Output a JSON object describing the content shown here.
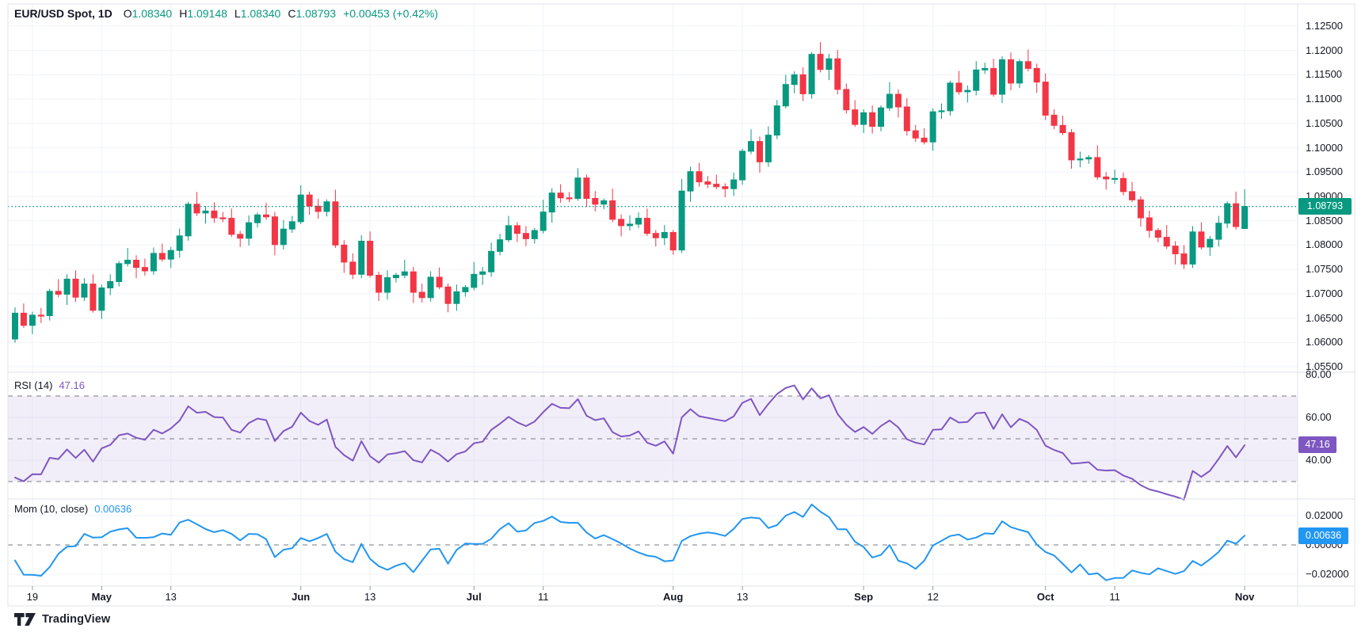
{
  "header": {
    "title": "EUR/USD Spot, 1D",
    "ohlc": [
      {
        "key": "O",
        "value": "1.08340"
      },
      {
        "key": "H",
        "value": "1.09148"
      },
      {
        "key": "L",
        "value": "1.08340"
      },
      {
        "key": "C",
        "value": "1.08793"
      }
    ],
    "change": "+0.00453 (+0.42%)"
  },
  "colors": {
    "up": "#089981",
    "down": "#F23645",
    "rsi_line": "#7E57C2",
    "mom_line": "#2196F3",
    "rsi_band_fill": "rgba(126,87,194,0.10)",
    "dashed_level": "#787B86",
    "grid": "#F0F3FA",
    "separator": "#E0E3EB",
    "text": "#131722",
    "background": "#FFFFFF"
  },
  "price_axis": {
    "badge": "1.08793"
  },
  "rsi_panel": {
    "label": "RSI (14)",
    "value": "47.16",
    "badge": "47.16",
    "ticks": [
      80,
      60,
      40
    ],
    "dashed_levels": [
      70,
      50,
      30
    ],
    "band": [
      70,
      30
    ]
  },
  "mom_panel": {
    "label": "Mom (10, close)",
    "value": "0.00636",
    "badge": "0.00636",
    "ticks": [
      0.02,
      0,
      -0.02
    ],
    "zero_level": 0
  },
  "x_axis": {
    "labels": [
      {
        "text": "19",
        "idx": 2,
        "bold": false
      },
      {
        "text": "May",
        "idx": 10,
        "bold": true
      },
      {
        "text": "13",
        "idx": 18,
        "bold": false
      },
      {
        "text": "Jun",
        "idx": 33,
        "bold": true
      },
      {
        "text": "13",
        "idx": 41,
        "bold": false
      },
      {
        "text": "Jul",
        "idx": 53,
        "bold": true
      },
      {
        "text": "11",
        "idx": 61,
        "bold": false
      },
      {
        "text": "Aug",
        "idx": 76,
        "bold": true
      },
      {
        "text": "13",
        "idx": 84,
        "bold": false
      },
      {
        "text": "Sep",
        "idx": 98,
        "bold": true
      },
      {
        "text": "12",
        "idx": 106,
        "bold": false
      },
      {
        "text": "Oct",
        "idx": 119,
        "bold": true
      },
      {
        "text": "11",
        "idx": 127,
        "bold": false
      },
      {
        "text": "Nov",
        "idx": 142,
        "bold": true
      }
    ]
  },
  "attribution": {
    "text": "TradingView"
  },
  "chart_data": {
    "type": "candlestick",
    "symbol": "EUR/USD Spot",
    "timeframe": "1D",
    "title": "EUR/USD Spot, 1D",
    "last_bar": {
      "open": 1.0834,
      "high": 1.09148,
      "low": 1.0834,
      "close": 1.08793,
      "change": 0.00453,
      "change_pct": 0.42
    },
    "y_axis": {
      "min": 1.055,
      "max": 1.125,
      "step": 0.005
    },
    "rsi_last": 47.16,
    "mom_last": 0.00636,
    "rsi_period": 14,
    "mom_period": 10,
    "first_open": 1.0607,
    "pre_closes": [
      1.0826,
      1.079,
      1.0792,
      1.0774,
      1.0766,
      1.0838,
      1.086,
      1.0866,
      1.0856,
      1.076,
      1.0742,
      1.0701,
      1.0645,
      1.0616
    ],
    "closes": [
      1.066,
      1.0635,
      1.0656,
      1.0655,
      1.0705,
      1.0699,
      1.073,
      1.0693,
      1.072,
      1.0666,
      1.0712,
      1.0725,
      1.0762,
      1.0769,
      1.0754,
      1.0747,
      1.0783,
      1.0771,
      1.0789,
      1.0819,
      1.0884,
      1.0866,
      1.087,
      1.0856,
      1.0855,
      1.0822,
      1.0814,
      1.0846,
      1.0862,
      1.0858,
      1.0801,
      1.0833,
      1.0848,
      1.0903,
      1.088,
      1.0869,
      1.0889,
      1.08,
      1.0765,
      1.074,
      1.0808,
      1.0738,
      1.0703,
      1.0733,
      1.0738,
      1.0745,
      1.0703,
      1.0692,
      1.0734,
      1.0714,
      1.068,
      1.0704,
      1.0713,
      1.074,
      1.0745,
      1.0787,
      1.0811,
      1.084,
      1.0824,
      1.0813,
      1.083,
      1.0868,
      1.0907,
      1.0897,
      1.0896,
      1.0938,
      1.0896,
      1.0884,
      1.0891,
      1.0853,
      1.084,
      1.0843,
      1.0855,
      1.0824,
      1.0815,
      1.0826,
      1.079,
      1.0911,
      1.0951,
      1.093,
      1.0925,
      1.092,
      1.0916,
      1.0934,
      1.0993,
      1.1013,
      1.0971,
      1.1026,
      1.1086,
      1.113,
      1.115,
      1.1111,
      1.1192,
      1.1161,
      1.1183,
      1.112,
      1.1078,
      1.1048,
      1.1072,
      1.1044,
      1.1082,
      1.111,
      1.1084,
      1.1035,
      1.102,
      1.1012,
      1.1074,
      1.1076,
      1.1133,
      1.1115,
      1.1118,
      1.116,
      1.1163,
      1.111,
      1.1181,
      1.1133,
      1.1177,
      1.1163,
      1.1135,
      1.1067,
      1.1046,
      1.1031,
      1.0975,
      1.0977,
      1.098,
      1.094,
      1.0936,
      1.0937,
      1.091,
      1.0893,
      1.0856,
      1.083,
      1.0816,
      1.0798,
      1.0782,
      1.0761,
      1.0827,
      1.0796,
      1.0812,
      1.0845,
      1.0885,
      1.0838,
      1.08793
    ],
    "wick_cycle": [
      [
        0.0012,
        0.0008
      ],
      [
        0.002,
        0.0005
      ],
      [
        0.0007,
        0.0018
      ],
      [
        0.0015,
        0.0015
      ],
      [
        0.0005,
        0.001
      ],
      [
        0.0025,
        0.0006
      ],
      [
        0.001,
        0.0022
      ],
      [
        0.0018,
        0.001
      ]
    ],
    "last_candle_ohlc": [
      1.0834,
      1.09148,
      1.0834,
      1.08793
    ]
  }
}
